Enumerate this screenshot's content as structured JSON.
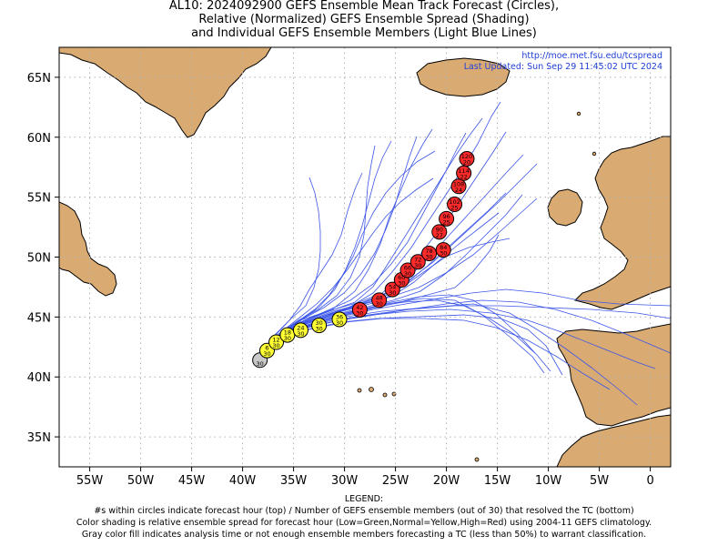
{
  "title": {
    "line1": "AL10: 2024092900 GEFS Ensemble Mean Track Forecast (Circles),",
    "line2": "Relative (Normalized) GEFS Ensemble Spread (Shading)",
    "line3": "and Individual GEFS Ensemble Members (Light Blue Lines)"
  },
  "info": {
    "url": "http://moe.met.fsu.edu/tcspread",
    "updated": "Last Updated: Sun Sep 29 11:45:02 UTC 2024"
  },
  "axes": {
    "lon_labels": [
      "55W",
      "50W",
      "45W",
      "40W",
      "35W",
      "30W",
      "25W",
      "20W",
      "15W",
      "10W",
      "5W",
      "0"
    ],
    "lat_labels": [
      "65N",
      "60N",
      "55N",
      "50N",
      "45N",
      "40N",
      "35N"
    ]
  },
  "legend": {
    "heading": "LEGEND:",
    "line1": "#s within circles indicate forecast hour (top) / Number of GEFS ensemble members (out of 30) that resolved the TC (bottom)",
    "line2": "Color shading is relative ensemble spread for forecast hour (Low=Green,Normal=Yellow,High=Red) using 2004-11 GEFS climatology.",
    "line3": "Gray color fill indicates analysis time or not enough ensemble members forecasting a TC (less than 50%) to warrant classification."
  },
  "colors": {
    "land": "#d9ab73",
    "ocean": "#ffffff",
    "member_track": "#3c55e8",
    "spread_gray": "#c8c8c8",
    "spread_yellow": "#ffff33",
    "spread_red": "#ff2a2a",
    "grid": "#b0b0b0"
  },
  "chart_data": {
    "type": "scatter",
    "map_extent": {
      "lon": [
        -58,
        2
      ],
      "lat": [
        32.5,
        67.5
      ]
    },
    "grid_lon": [
      -55,
      -50,
      -45,
      -40,
      -35,
      -30,
      -25,
      -20,
      -15,
      -10,
      -5,
      0
    ],
    "grid_lat": [
      35,
      40,
      45,
      50,
      55,
      60,
      65
    ],
    "mean_track": [
      {
        "hour": "",
        "members": "30",
        "lon": -38.3,
        "lat": 41.4,
        "spread": "gray"
      },
      {
        "hour": "6",
        "members": "30",
        "lon": -37.6,
        "lat": 42.2,
        "spread": "yellow"
      },
      {
        "hour": "12",
        "members": "30",
        "lon": -36.7,
        "lat": 42.9,
        "spread": "yellow"
      },
      {
        "hour": "18",
        "members": "30",
        "lon": -35.6,
        "lat": 43.5,
        "spread": "yellow"
      },
      {
        "hour": "24",
        "members": "30",
        "lon": -34.3,
        "lat": 43.9,
        "spread": "yellow"
      },
      {
        "hour": "30",
        "members": "30",
        "lon": -32.5,
        "lat": 44.3,
        "spread": "yellow"
      },
      {
        "hour": "36",
        "members": "30",
        "lon": -30.5,
        "lat": 44.8,
        "spread": "yellow"
      },
      {
        "hour": "42",
        "members": "30",
        "lon": -28.5,
        "lat": 45.6,
        "spread": "red"
      },
      {
        "hour": "48",
        "members": "30",
        "lon": -26.6,
        "lat": 46.4,
        "spread": "red"
      },
      {
        "hour": "54",
        "members": "30",
        "lon": -25.3,
        "lat": 47.3,
        "spread": "red"
      },
      {
        "hour": "60",
        "members": "30",
        "lon": -24.4,
        "lat": 48.1,
        "spread": "red"
      },
      {
        "hour": "66",
        "members": "30",
        "lon": -23.8,
        "lat": 48.9,
        "spread": "red"
      },
      {
        "hour": "72",
        "members": "30",
        "lon": -22.8,
        "lat": 49.6,
        "spread": "red"
      },
      {
        "hour": "78",
        "members": "30",
        "lon": -21.7,
        "lat": 50.3,
        "spread": "red"
      },
      {
        "hour": "84",
        "members": "30",
        "lon": -20.3,
        "lat": 50.6,
        "spread": "red"
      },
      {
        "hour": "90",
        "members": "27",
        "lon": -20.7,
        "lat": 52.1,
        "spread": "red"
      },
      {
        "hour": "96",
        "members": "25",
        "lon": -20.0,
        "lat": 53.2,
        "spread": "red"
      },
      {
        "hour": "102",
        "members": "25",
        "lon": -19.2,
        "lat": 54.4,
        "spread": "red"
      },
      {
        "hour": "108",
        "members": "24",
        "lon": -18.8,
        "lat": 55.9,
        "spread": "red"
      },
      {
        "hour": "114",
        "members": "22",
        "lon": -18.3,
        "lat": 57.0,
        "spread": "red"
      },
      {
        "hour": "120",
        "members": "20",
        "lon": -18.0,
        "lat": 58.2,
        "spread": "red"
      }
    ]
  }
}
